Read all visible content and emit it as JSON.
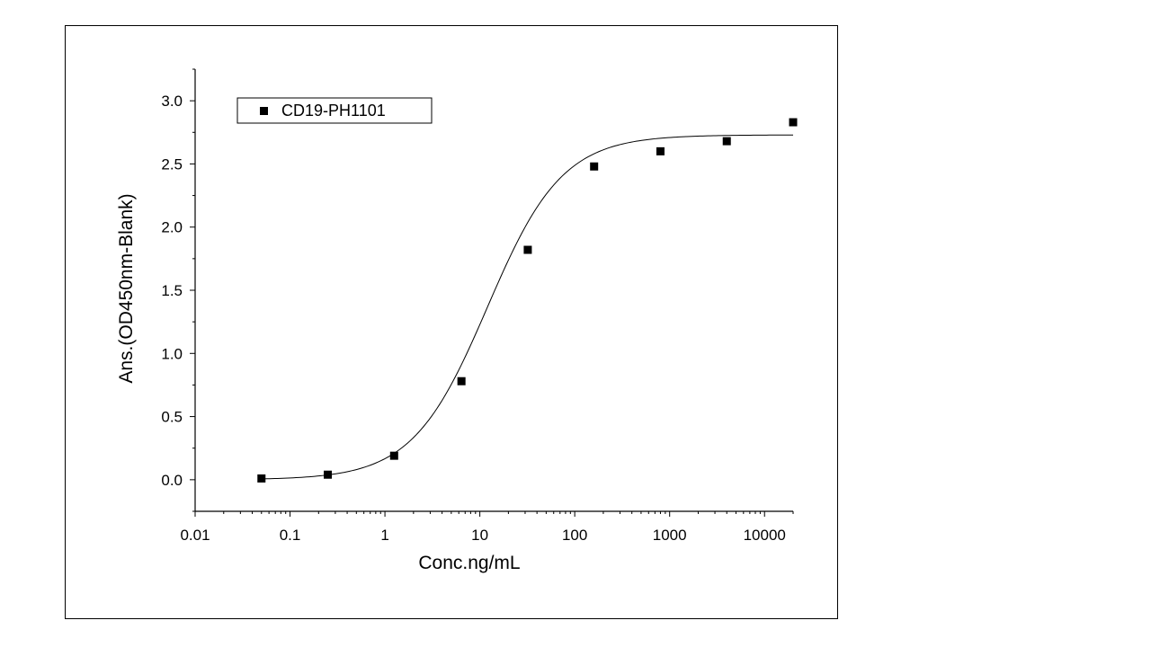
{
  "chart_data": {
    "type": "scatter",
    "xscale": "log",
    "xlabel": "Conc.ng/mL",
    "ylabel": "Ans.(OD450nm-Blank)",
    "xlim": [
      0.01,
      20000
    ],
    "ylim": [
      -0.25,
      3.25
    ],
    "xticks": [
      0.01,
      0.1,
      1,
      10,
      100,
      1000,
      10000
    ],
    "xtick_labels": [
      "0.01",
      "0.1",
      "1",
      "10",
      "100",
      "1000",
      "10000"
    ],
    "yticks": [
      0.0,
      0.5,
      1.0,
      1.5,
      2.0,
      2.5,
      3.0
    ],
    "ytick_labels": [
      "0.0",
      "0.5",
      "1.0",
      "1.5",
      "2.0",
      "2.5",
      "3.0"
    ],
    "legend_position": "top-left",
    "grid": false,
    "series": [
      {
        "name": "CD19-PH1101",
        "marker": "square",
        "color": "#000000",
        "x": [
          0.05,
          0.25,
          1.25,
          6.4,
          32,
          160,
          800,
          4000,
          20000
        ],
        "y": [
          0.01,
          0.04,
          0.19,
          0.78,
          1.82,
          2.48,
          2.6,
          2.68,
          2.83
        ]
      }
    ],
    "fit_curve": {
      "type": "4PL",
      "bottom": 0.0,
      "top": 2.73,
      "ec50": 12,
      "hill": 1.1,
      "color": "#000000"
    }
  }
}
